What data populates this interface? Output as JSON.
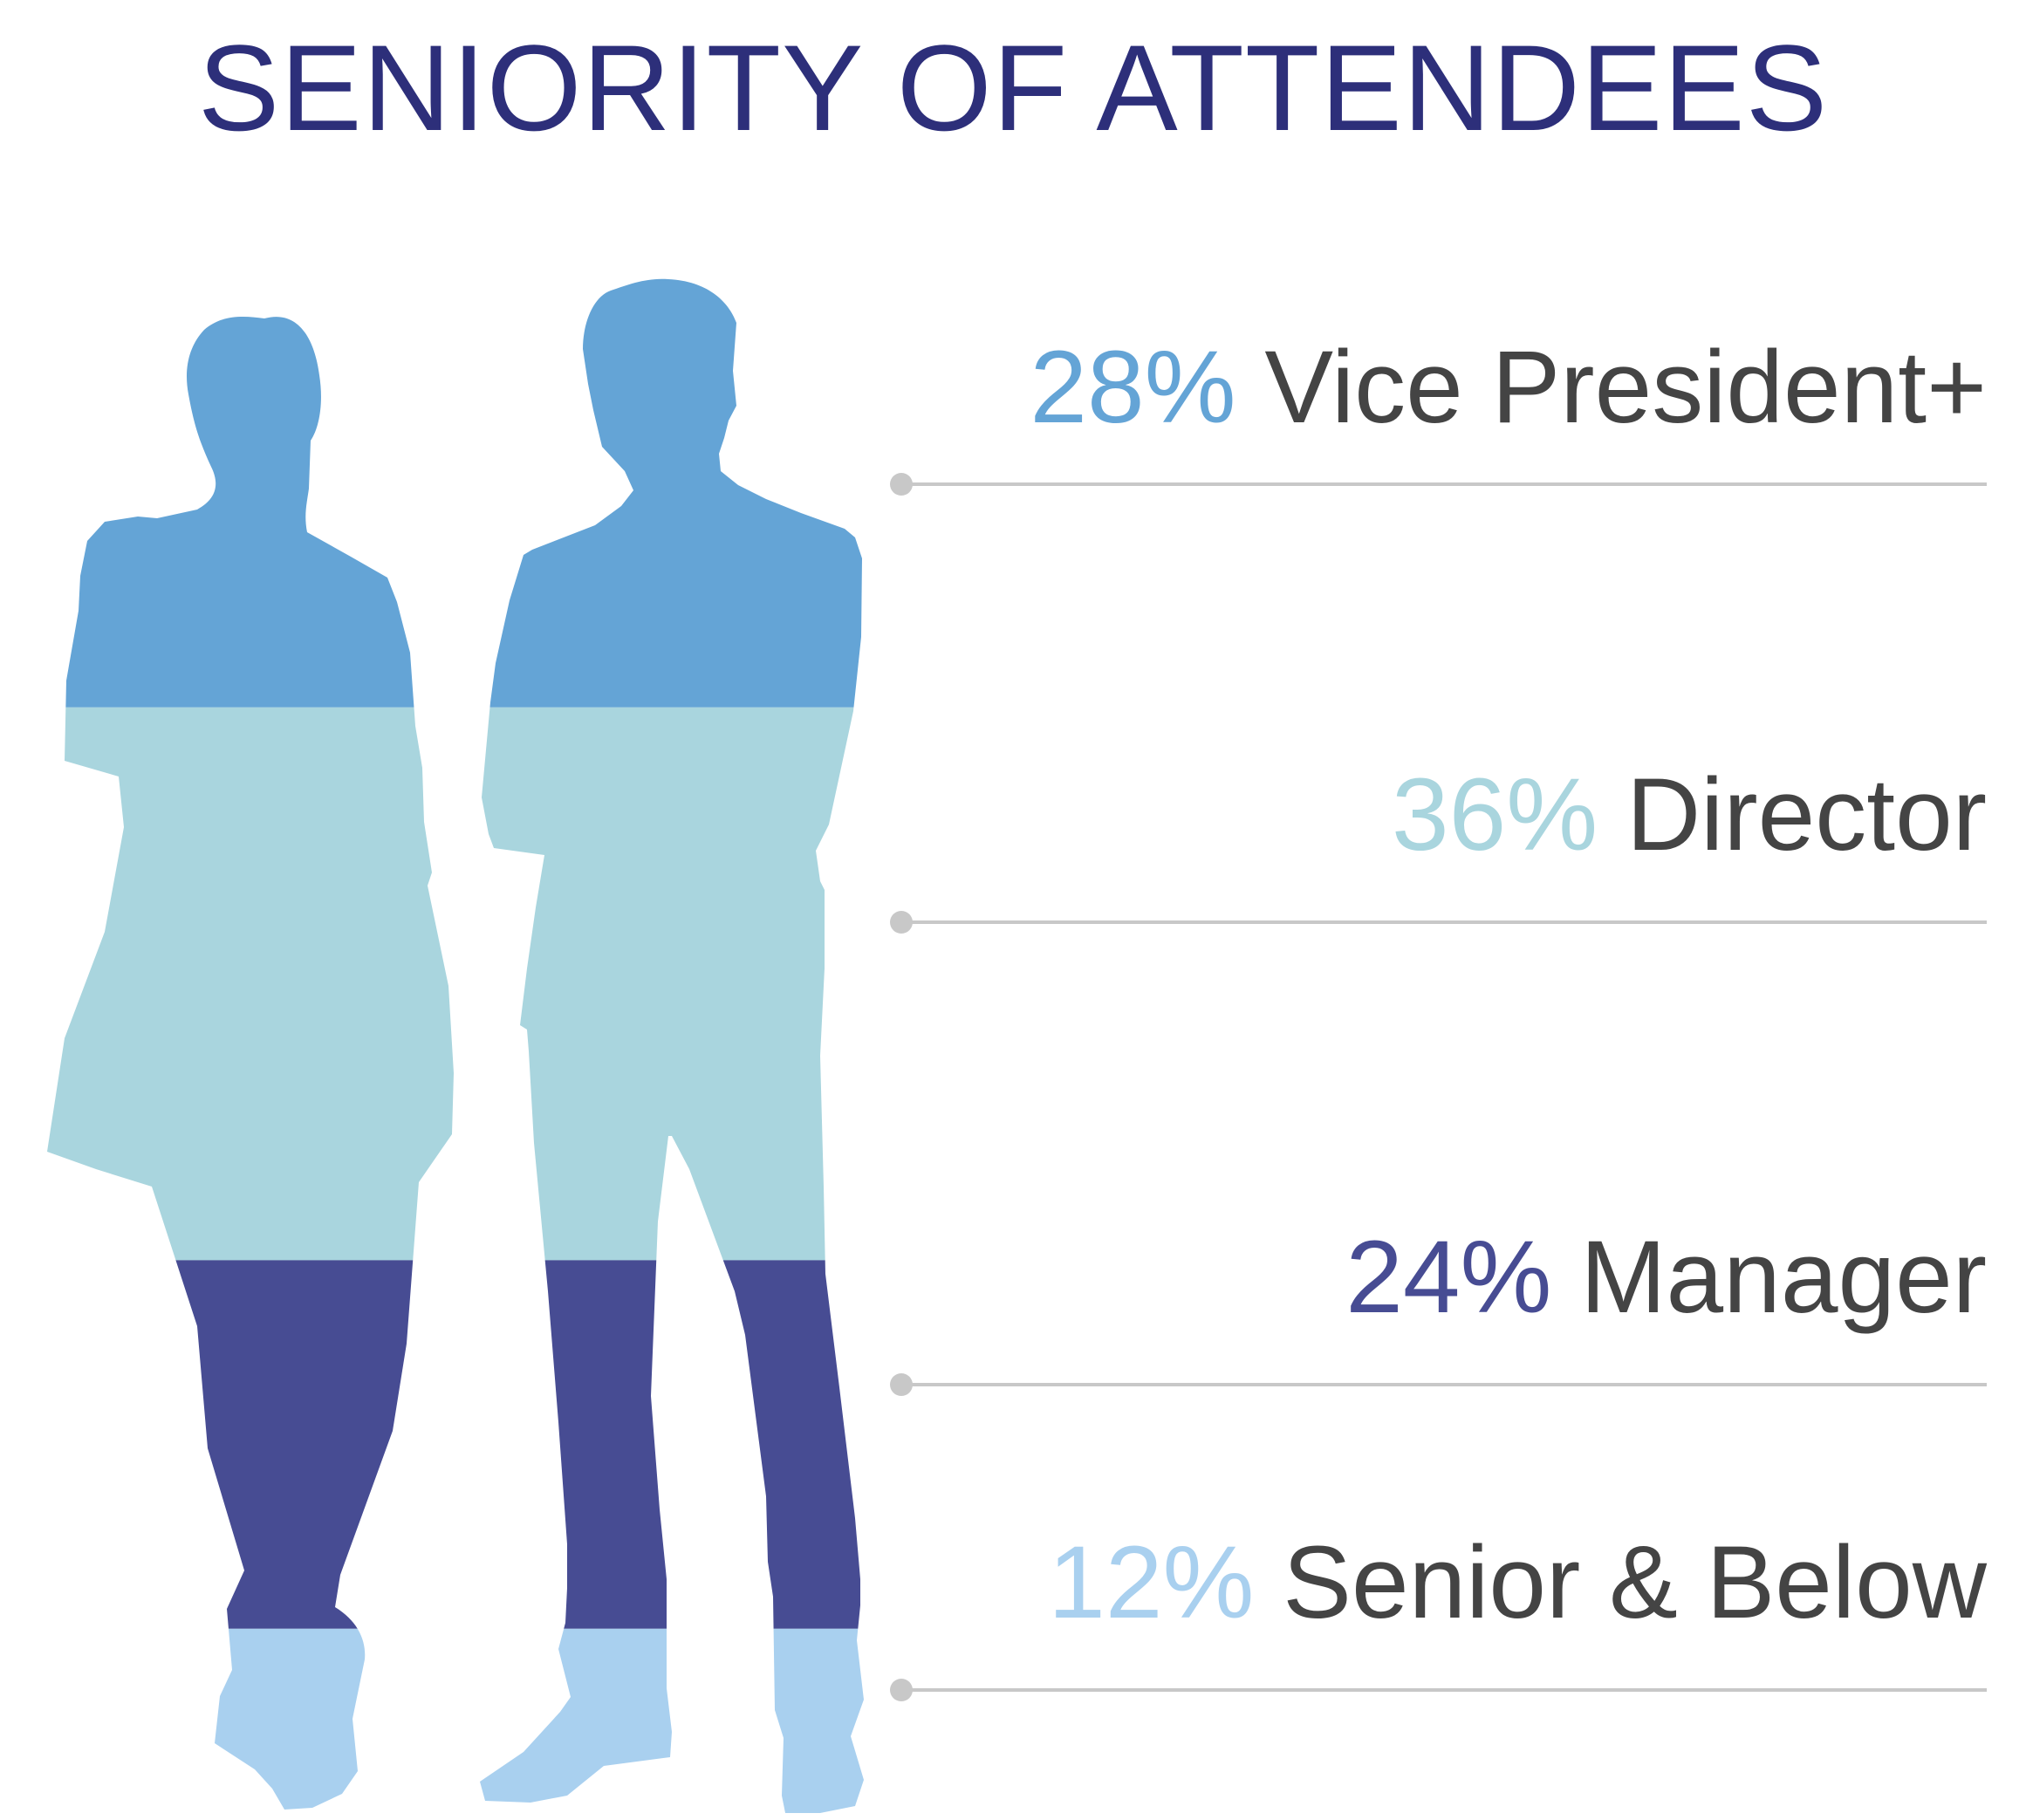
{
  "title": "SENIORITY OF ATTENDEES",
  "colors": {
    "title": "#2d2f7a",
    "label_text": "#444444",
    "divider": "#c8c8c8"
  },
  "chart_data": {
    "type": "pictograph-stacked",
    "title": "SENIORITY OF ATTENDEES",
    "unit": "%",
    "categories": [
      "Vice President+",
      "Director",
      "Manager",
      "Senior & Below"
    ],
    "values": [
      28,
      36,
      24,
      12
    ],
    "series": [
      {
        "name": "Vice President+",
        "value": 28,
        "pct_label": "28%",
        "color": "#64a4d6"
      },
      {
        "name": "Director",
        "value": 36,
        "pct_label": "36%",
        "color": "#a9d5de"
      },
      {
        "name": "Manager",
        "value": 24,
        "pct_label": "24%",
        "color": "#474c93"
      },
      {
        "name": "Senior & Below",
        "value": 12,
        "pct_label": "12%",
        "color": "#a9d0ef"
      }
    ],
    "stack_order": "top-to-bottom",
    "legend_position": "right"
  }
}
